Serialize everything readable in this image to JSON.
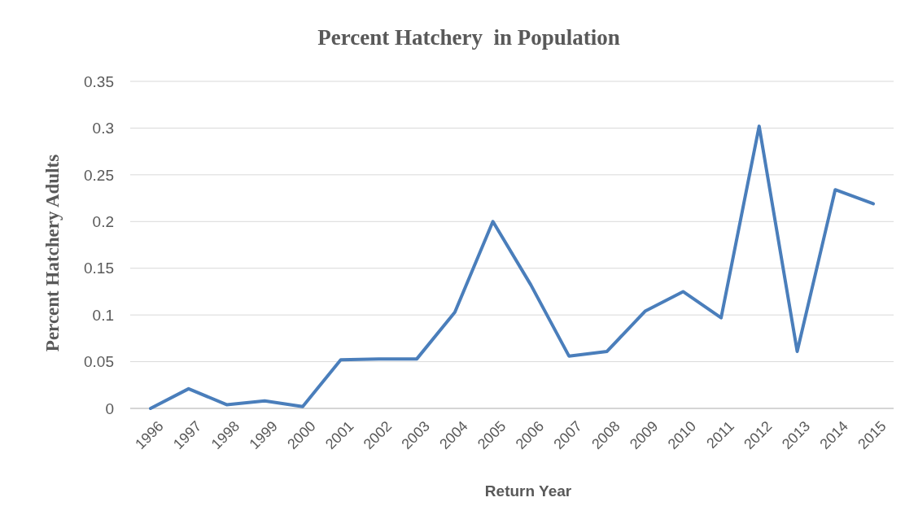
{
  "chart_data": {
    "type": "line",
    "title": "Percent Hatchery  in Population",
    "xlabel": "Return Year",
    "ylabel": "Percent Hatchery Adults",
    "categories": [
      "1996",
      "1997",
      "1998",
      "1999",
      "2000",
      "2001",
      "2002",
      "2003",
      "2004",
      "2005",
      "2006",
      "2007",
      "2008",
      "2009",
      "2010",
      "2011",
      "2012",
      "2013",
      "2014",
      "2015"
    ],
    "series": [
      {
        "color": "#4a7ebb",
        "values": [
          0.0,
          0.021,
          0.004,
          0.008,
          0.002,
          0.052,
          0.053,
          0.053,
          0.103,
          0.2,
          0.132,
          0.056,
          0.061,
          0.104,
          0.125,
          0.097,
          0.302,
          0.061,
          0.234,
          0.219
        ]
      }
    ],
    "ylim": [
      0,
      0.35
    ],
    "yticks": [
      0,
      0.05,
      0.1,
      0.15,
      0.2,
      0.25,
      0.3,
      0.35
    ],
    "grid": "y",
    "marker": "none",
    "line_style": "solid"
  }
}
